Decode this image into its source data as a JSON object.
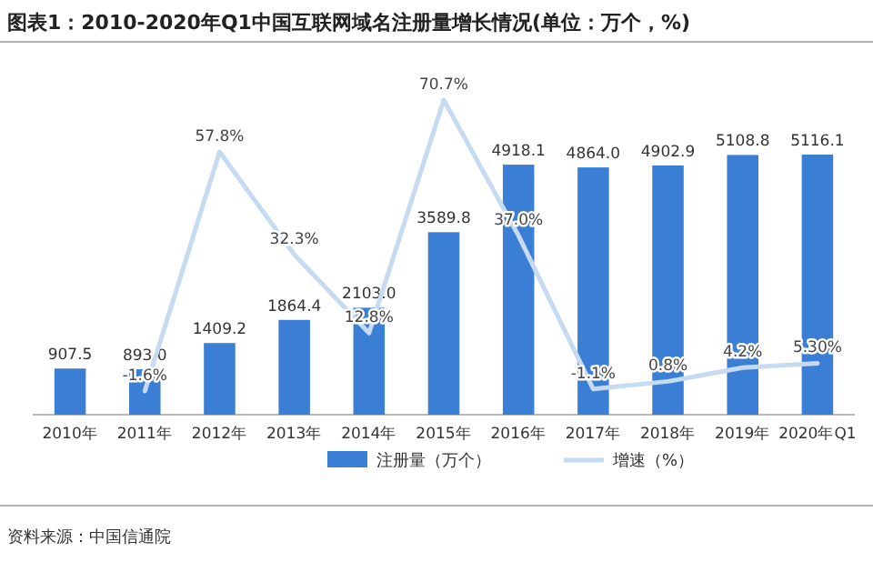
{
  "chart_data": {
    "type": "bar",
    "title": "图表1：2010-2020年Q1中国互联网域名注册量增长情况(单位：万个，%)",
    "categories": [
      "2010年",
      "2011年",
      "2012年",
      "2013年",
      "2014年",
      "2015年",
      "2016年",
      "2017年",
      "2018年",
      "2019年",
      "2020年Q1"
    ],
    "series": [
      {
        "name": "注册量（万个）",
        "color": "#3a7fd5",
        "values": [
          907.5,
          893.0,
          1409.2,
          1864.4,
          2103.0,
          3589.8,
          4918.1,
          4864.0,
          4902.9,
          5108.8,
          5116.1
        ],
        "value_labels": [
          "907.5",
          "893.0",
          "1409.2",
          "1864.4",
          "2103.0",
          "3589.8",
          "4918.1",
          "4864.0",
          "4902.9",
          "5108.8",
          "5116.1"
        ]
      },
      {
        "name": "增速（%）",
        "type": "line",
        "axis": "y2",
        "color": "#c6daf2",
        "values": [
          null,
          -1.6,
          57.8,
          32.3,
          12.8,
          70.7,
          37.0,
          -1.1,
          0.8,
          4.2,
          5.3
        ],
        "value_labels": [
          null,
          "-1.6%",
          "57.8%",
          "32.3%",
          "12.8%",
          "70.7%",
          "37.0%",
          "-1.1%",
          "0.8%",
          "4.2%",
          "5.30%"
        ]
      }
    ],
    "legend": "bottom",
    "marker": "none",
    "line_style": "solid",
    "annotations": [
      "资料来源：中国信通院"
    ]
  }
}
